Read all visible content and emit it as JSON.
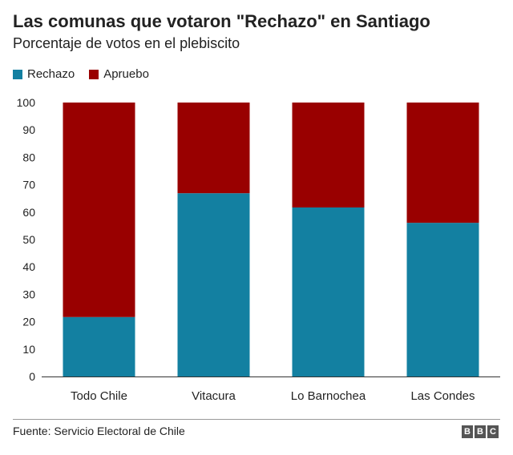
{
  "title": "Las comunas que votaron \"Rechazo\" en Santiago",
  "subtitle": "Porcentaje de votos en el plebiscito",
  "legend": [
    {
      "label": "Rechazo",
      "color": "#1380a1"
    },
    {
      "label": "Apruebo",
      "color": "#990000"
    }
  ],
  "source": "Fuente: Servicio Electoral de Chile",
  "logo": [
    "B",
    "B",
    "C"
  ],
  "chart_data": {
    "type": "bar",
    "stacked": true,
    "categories": [
      "Todo Chile",
      "Vitacura",
      "Lo Barnochea",
      "Las Condes"
    ],
    "series": [
      {
        "name": "Rechazo",
        "color": "#1380a1",
        "values": [
          21.7,
          66.9,
          61.7,
          56.1
        ]
      },
      {
        "name": "Apruebo",
        "color": "#990000",
        "values": [
          78.3,
          33.1,
          38.3,
          43.9
        ]
      }
    ],
    "ylim": [
      0,
      100
    ],
    "yticks": [
      0,
      10,
      20,
      30,
      40,
      50,
      60,
      70,
      80,
      90,
      100
    ],
    "grid": false,
    "legend_position": "top-left"
  }
}
